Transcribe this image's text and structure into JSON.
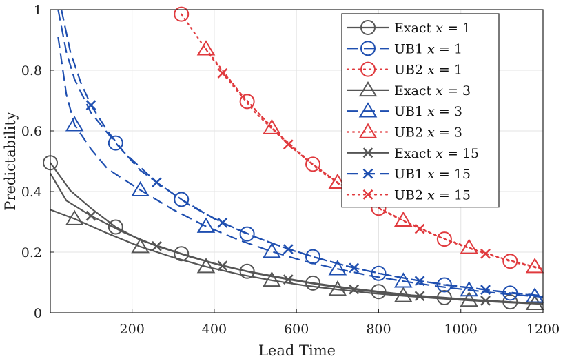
{
  "chart_data": {
    "type": "line",
    "xlabel": "Lead Time",
    "ylabel": "Predictability",
    "xlim": [
      1,
      1200
    ],
    "ylim": [
      0,
      1
    ],
    "xticks": [
      200,
      400,
      600,
      800,
      1000,
      1200
    ],
    "yticks": [
      0,
      0.2,
      0.4,
      0.6,
      0.8,
      1
    ],
    "xtick_labels": [
      "200",
      "400",
      "600",
      "800",
      "1000",
      "1200"
    ],
    "ytick_labels": [
      "0",
      "0.2",
      "0.4",
      "0.6",
      "0.8",
      "1"
    ],
    "grid": true,
    "legend_position": "top-right",
    "colors": {
      "exact": "#555555",
      "ub1": "#1f4fb0",
      "ub2": "#e03a3e"
    },
    "series": [
      {
        "name": "Exact x = 1",
        "legend_label": "Exact",
        "x_value": "1",
        "group": "exact",
        "style": "solid",
        "marker": "circle",
        "marker_x": [
          1,
          160,
          320,
          480,
          640,
          800,
          960,
          1120
        ],
        "x": [
          1,
          50,
          100,
          160,
          220,
          320,
          400,
          480,
          560,
          640,
          720,
          800,
          880,
          960,
          1040,
          1120,
          1200
        ],
        "values": [
          0.495,
          0.403,
          0.345,
          0.283,
          0.24,
          0.195,
          0.163,
          0.137,
          0.117,
          0.098,
          0.083,
          0.07,
          0.058,
          0.05,
          0.042,
          0.036,
          0.03
        ]
      },
      {
        "name": "UB1 x = 1",
        "legend_label": "UB1",
        "x_value": "1",
        "group": "ub1",
        "style": "dashed",
        "marker": "circle",
        "marker_x": [
          160,
          320,
          480,
          640,
          800,
          960,
          1120
        ],
        "x": [
          20,
          40,
          60,
          100,
          160,
          220,
          260,
          320,
          400,
          480,
          560,
          640,
          720,
          800,
          880,
          960,
          1040,
          1120,
          1200
        ],
        "values": [
          1.0,
          0.86,
          0.77,
          0.66,
          0.56,
          0.47,
          0.43,
          0.374,
          0.31,
          0.26,
          0.22,
          0.185,
          0.155,
          0.13,
          0.11,
          0.092,
          0.08,
          0.065,
          0.055
        ]
      },
      {
        "name": "UB2 x = 1",
        "legend_label": "UB2",
        "x_value": "1",
        "group": "ub2",
        "style": "dotted",
        "marker": "circle",
        "marker_x": [
          320,
          480,
          640,
          800,
          960,
          1120
        ],
        "x": [
          320,
          400,
          480,
          560,
          640,
          720,
          800,
          880,
          960,
          1040,
          1120,
          1200
        ],
        "values": [
          0.985,
          0.83,
          0.697,
          0.585,
          0.49,
          0.41,
          0.345,
          0.29,
          0.243,
          0.204,
          0.17,
          0.143
        ]
      },
      {
        "name": "Exact x = 3",
        "legend_label": "Exact",
        "x_value": "3",
        "group": "exact",
        "style": "solid",
        "marker": "triangle",
        "marker_x": [
          60,
          220,
          380,
          540,
          700,
          860,
          1020,
          1180
        ],
        "x": [
          1,
          60,
          140,
          220,
          300,
          380,
          460,
          540,
          620,
          700,
          780,
          860,
          940,
          1020,
          1100,
          1180,
          1200
        ],
        "values": [
          0.34,
          0.31,
          0.262,
          0.218,
          0.183,
          0.152,
          0.127,
          0.107,
          0.09,
          0.077,
          0.065,
          0.056,
          0.048,
          0.041,
          0.035,
          0.03,
          0.029
        ]
      },
      {
        "name": "UB1 x = 3",
        "legend_label": "UB1",
        "x_value": "3",
        "group": "ub1",
        "style": "dashed",
        "marker": "triangle",
        "marker_x": [
          60,
          220,
          380,
          540,
          700,
          860,
          1020,
          1180
        ],
        "x": [
          20,
          40,
          60,
          100,
          140,
          220,
          300,
          380,
          460,
          540,
          620,
          700,
          780,
          860,
          940,
          1020,
          1100,
          1180,
          1200
        ],
        "values": [
          0.91,
          0.72,
          0.62,
          0.54,
          0.475,
          0.405,
          0.34,
          0.285,
          0.24,
          0.202,
          0.17,
          0.145,
          0.122,
          0.104,
          0.088,
          0.075,
          0.063,
          0.054,
          0.052
        ]
      },
      {
        "name": "UB2 x = 3",
        "legend_label": "UB2",
        "x_value": "3",
        "group": "ub2",
        "style": "dotted",
        "marker": "triangle",
        "marker_x": [
          380,
          540,
          700,
          860,
          1020,
          1180
        ],
        "x": [
          380,
          460,
          540,
          620,
          700,
          780,
          860,
          940,
          1020,
          1100,
          1180,
          1200
        ],
        "values": [
          0.87,
          0.73,
          0.61,
          0.51,
          0.43,
          0.36,
          0.305,
          0.255,
          0.215,
          0.18,
          0.152,
          0.145
        ]
      },
      {
        "name": "Exact x = 15",
        "legend_label": "Exact",
        "x_value": "15",
        "group": "exact",
        "style": "solid",
        "marker": "cross",
        "marker_x": [
          100,
          260,
          420,
          580,
          740,
          900,
          1060
        ],
        "x": [
          1,
          40,
          100,
          180,
          260,
          340,
          420,
          500,
          580,
          660,
          740,
          820,
          900,
          980,
          1060,
          1140,
          1200
        ],
        "values": [
          0.46,
          0.37,
          0.32,
          0.265,
          0.22,
          0.185,
          0.155,
          0.13,
          0.11,
          0.092,
          0.077,
          0.065,
          0.055,
          0.047,
          0.04,
          0.034,
          0.03
        ]
      },
      {
        "name": "UB1 x = 15",
        "legend_label": "UB1",
        "x_value": "15",
        "group": "ub1",
        "style": "dashed",
        "marker": "cross",
        "marker_x": [
          100,
          260,
          420,
          580,
          740,
          900,
          1060
        ],
        "x": [
          28,
          50,
          75,
          100,
          140,
          180,
          260,
          340,
          420,
          500,
          580,
          660,
          740,
          820,
          900,
          980,
          1060,
          1140,
          1200
        ],
        "values": [
          1.0,
          0.86,
          0.76,
          0.685,
          0.6,
          0.53,
          0.43,
          0.355,
          0.297,
          0.25,
          0.21,
          0.177,
          0.148,
          0.125,
          0.105,
          0.09,
          0.076,
          0.064,
          0.056
        ]
      },
      {
        "name": "UB2 x = 15",
        "legend_label": "UB2",
        "x_value": "15",
        "group": "ub2",
        "style": "dotted",
        "marker": "cross",
        "marker_x": [
          420,
          580,
          740,
          900,
          1060
        ],
        "x": [
          420,
          500,
          580,
          660,
          740,
          820,
          900,
          980,
          1060,
          1140,
          1200
        ],
        "values": [
          0.79,
          0.66,
          0.555,
          0.465,
          0.39,
          0.33,
          0.277,
          0.232,
          0.195,
          0.165,
          0.145
        ]
      }
    ]
  }
}
